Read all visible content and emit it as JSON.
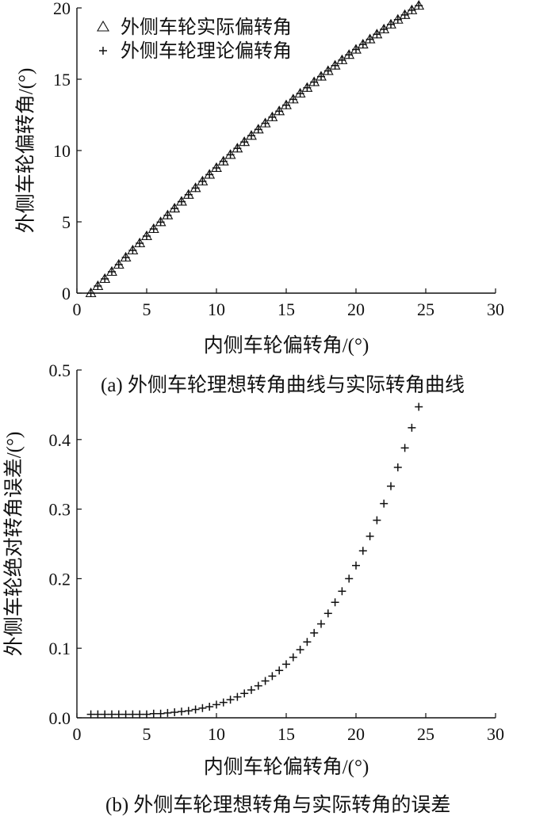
{
  "chart_data": [
    {
      "type": "scatter",
      "caption": "(a) 外侧车轮理想转角曲线与实际转角曲线",
      "xlabel": "内侧车轮偏转角/(°)",
      "ylabel": "外侧车轮偏转角/(°)",
      "xlim": [
        0,
        30
      ],
      "ylim": [
        0,
        20
      ],
      "xticks": [
        "0",
        "5",
        "10",
        "15",
        "20",
        "25",
        "30"
      ],
      "yticks": [
        "0",
        "5",
        "10",
        "15",
        "20"
      ],
      "legend_position": "top-left",
      "series": [
        {
          "name": "外侧车轮实际偏转角",
          "marker": "triangle",
          "x": [
            1,
            1.5,
            2,
            2.5,
            3,
            3.5,
            4,
            4.5,
            5,
            5.5,
            6,
            6.5,
            7,
            7.5,
            8,
            8.5,
            9,
            9.5,
            10,
            10.5,
            11,
            11.5,
            12,
            12.5,
            13,
            13.5,
            14,
            14.5,
            15,
            15.5,
            16,
            16.5,
            17,
            17.5,
            18,
            18.5,
            19,
            19.5,
            20,
            20.5,
            21,
            21.5,
            22,
            22.5,
            23,
            23.5,
            24,
            24.5
          ],
          "y": [
            0.0,
            0.5,
            1.0,
            1.5,
            2.0,
            2.5,
            3.0,
            3.5,
            4.0,
            4.5,
            4.98,
            5.46,
            5.94,
            6.42,
            6.9,
            7.37,
            7.84,
            8.31,
            8.78,
            9.24,
            9.7,
            10.15,
            10.6,
            11.04,
            11.48,
            11.91,
            12.34,
            12.76,
            13.18,
            13.59,
            14.0,
            14.4,
            14.8,
            15.19,
            15.58,
            15.96,
            16.34,
            16.71,
            17.08,
            17.44,
            17.8,
            18.15,
            18.5,
            18.84,
            19.18,
            19.51,
            19.84,
            20.16
          ]
        },
        {
          "name": "外侧车轮理论偏转角",
          "marker": "plus",
          "x": [
            1,
            1.5,
            2,
            2.5,
            3,
            3.5,
            4,
            4.5,
            5,
            5.5,
            6,
            6.5,
            7,
            7.5,
            8,
            8.5,
            9,
            9.5,
            10,
            10.5,
            11,
            11.5,
            12,
            12.5,
            13,
            13.5,
            14,
            14.5,
            15,
            15.5,
            16,
            16.5,
            17,
            17.5,
            18,
            18.5,
            19,
            19.5,
            20,
            20.5,
            21,
            21.5,
            22,
            22.5,
            23,
            23.5,
            24,
            24.5
          ],
          "y": [
            0.0,
            0.5,
            1.0,
            1.5,
            2.0,
            2.5,
            3.0,
            3.5,
            4.0,
            4.5,
            4.98,
            5.46,
            5.94,
            6.42,
            6.9,
            7.37,
            7.84,
            8.31,
            8.78,
            9.24,
            9.7,
            10.15,
            10.6,
            11.04,
            11.48,
            11.91,
            12.34,
            12.76,
            13.18,
            13.59,
            14.0,
            14.4,
            14.8,
            15.19,
            15.58,
            15.96,
            16.34,
            16.71,
            17.08,
            17.44,
            17.8,
            18.15,
            18.5,
            18.84,
            19.18,
            19.51,
            19.84,
            20.16
          ]
        }
      ]
    },
    {
      "type": "scatter",
      "caption": "(b) 外侧车轮理想转角与实际转角的误差",
      "xlabel": "内侧车轮偏转角/(°)",
      "ylabel": "外侧车轮绝对转角误差/(°)",
      "xlim": [
        0,
        30
      ],
      "ylim": [
        0,
        0.5
      ],
      "xticks": [
        "0",
        "5",
        "10",
        "15",
        "20",
        "25",
        "30"
      ],
      "yticks": [
        "0.0",
        "0.1",
        "0.2",
        "0.3",
        "0.4",
        "0.5"
      ],
      "series": [
        {
          "name": "",
          "marker": "plus",
          "x": [
            1,
            1.5,
            2,
            2.5,
            3,
            3.5,
            4,
            4.5,
            5,
            5.5,
            6,
            6.5,
            7,
            7.5,
            8,
            8.5,
            9,
            9.5,
            10,
            10.5,
            11,
            11.5,
            12,
            12.5,
            13,
            13.5,
            14,
            14.5,
            15,
            15.5,
            16,
            16.5,
            17,
            17.5,
            18,
            18.5,
            19,
            19.5,
            20,
            20.5,
            21,
            21.5,
            22,
            22.5,
            23,
            23.5,
            24,
            24.5
          ],
          "y": [
            0.005,
            0.005,
            0.005,
            0.005,
            0.005,
            0.005,
            0.005,
            0.005,
            0.005,
            0.006,
            0.006,
            0.007,
            0.008,
            0.009,
            0.01,
            0.012,
            0.014,
            0.016,
            0.019,
            0.022,
            0.026,
            0.03,
            0.035,
            0.04,
            0.046,
            0.053,
            0.06,
            0.068,
            0.077,
            0.087,
            0.098,
            0.109,
            0.122,
            0.135,
            0.15,
            0.166,
            0.182,
            0.2,
            0.219,
            0.24,
            0.261,
            0.284,
            0.308,
            0.333,
            0.36,
            0.388,
            0.417,
            0.447
          ]
        }
      ]
    }
  ]
}
